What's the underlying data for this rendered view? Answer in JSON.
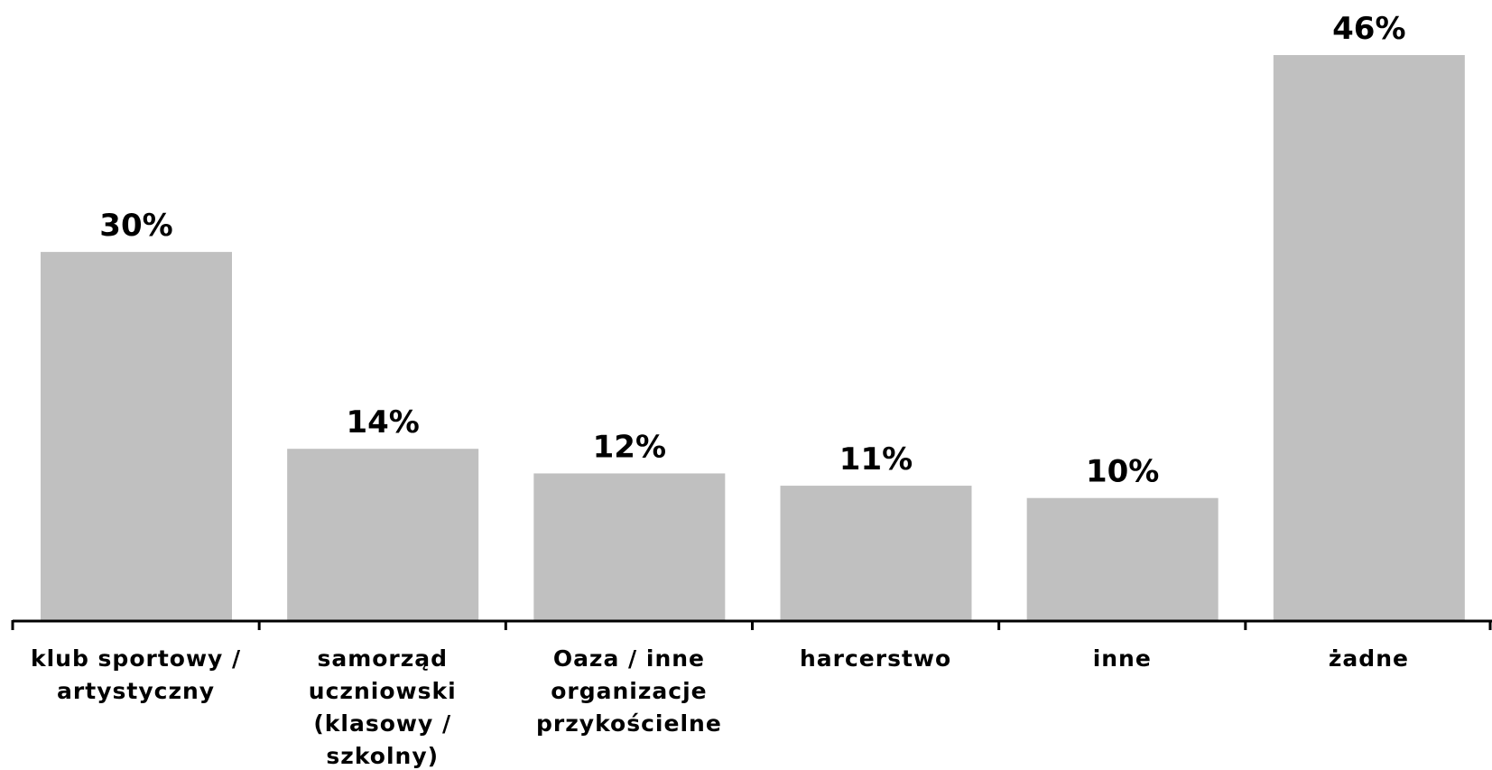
{
  "chart_data": {
    "type": "bar",
    "title": "",
    "xlabel": "",
    "ylabel": "",
    "ylim": [
      0,
      46
    ],
    "grid": false,
    "bar_color": "#c0c0c0",
    "categories": [
      [
        "klub sportowy /",
        "artystyczny"
      ],
      [
        "samorząd",
        "uczniowski",
        "(klasowy /",
        "szkolny)"
      ],
      [
        "Oaza / inne",
        "organizacje",
        "przykościelne"
      ],
      [
        "harcerstwo"
      ],
      [
        "inne"
      ],
      [
        "żadne"
      ]
    ],
    "values": [
      30,
      14,
      12,
      11,
      10,
      46
    ],
    "value_labels": [
      "30%",
      "14%",
      "12%",
      "11%",
      "10%",
      "46%"
    ]
  }
}
